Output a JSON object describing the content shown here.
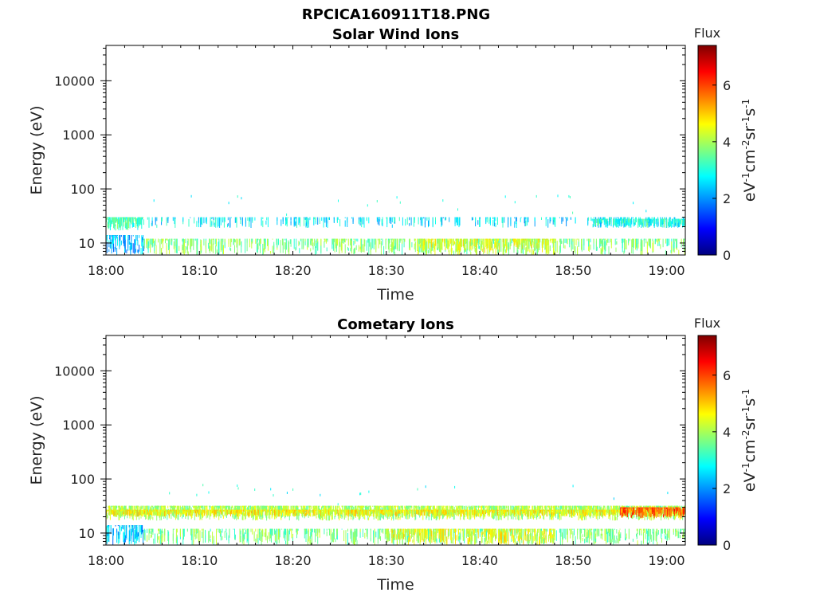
{
  "figure_title": "RPCICA160911T18.PNG",
  "colormap": [
    "#00007f",
    "#0000ff",
    "#007fff",
    "#00ffff",
    "#7fff7f",
    "#ffff00",
    "#ff7f00",
    "#ff0000",
    "#7f0000"
  ],
  "chart_data": [
    {
      "type": "heatmap",
      "title": "Solar Wind Ions",
      "xlabel": "Time",
      "ylabel": "Energy (eV)",
      "x_ticks": [
        "18:00",
        "18:10",
        "18:20",
        "18:30",
        "18:40",
        "18:50",
        "19:00"
      ],
      "x_range_minutes": [
        0,
        62
      ],
      "y_scale": "log",
      "y_ticks": [
        "10",
        "100",
        "1000",
        "10000"
      ],
      "y_range": [
        6,
        45000
      ],
      "colorbar": {
        "title": "Flux",
        "label": "eV-1cm-2sr-1s-1",
        "ticks": [
          "0",
          "2",
          "4",
          "6"
        ],
        "range": [
          0,
          7.4
        ]
      },
      "bands": [
        {
          "t_start_min": 0,
          "t_end_min": 4,
          "e_low": 17,
          "e_high": 30,
          "flux": 3.3,
          "density": 1.0
        },
        {
          "t_start_min": 0,
          "t_end_min": 4,
          "e_low": 6,
          "e_high": 14,
          "flux": 2.2,
          "density": 0.7
        },
        {
          "t_start_min": 4,
          "t_end_min": 62,
          "e_low": 19,
          "e_high": 30,
          "flux": 2.6,
          "density": 0.3
        },
        {
          "t_start_min": 52,
          "t_end_min": 62,
          "e_low": 19,
          "e_high": 28,
          "flux": 3.0,
          "density": 0.8
        },
        {
          "t_start_min": 4,
          "t_end_min": 62,
          "e_low": 6,
          "e_high": 12,
          "flux": 3.7,
          "density": 0.55
        },
        {
          "t_start_min": 33,
          "t_end_min": 48,
          "e_low": 6,
          "e_high": 12,
          "flux": 4.4,
          "density": 0.75
        }
      ]
    },
    {
      "type": "heatmap",
      "title": "Cometary Ions",
      "xlabel": "Time",
      "ylabel": "Energy (eV)",
      "x_ticks": [
        "18:00",
        "18:10",
        "18:20",
        "18:30",
        "18:40",
        "18:50",
        "19:00"
      ],
      "x_range_minutes": [
        0,
        62
      ],
      "y_scale": "log",
      "y_ticks": [
        "10",
        "100",
        "1000",
        "10000"
      ],
      "y_range": [
        6,
        45000
      ],
      "colorbar": {
        "title": "Flux",
        "label": "eV-1cm-2sr-1s-1",
        "ticks": [
          "0",
          "2",
          "4",
          "6"
        ],
        "range": [
          0,
          7.4
        ]
      },
      "bands": [
        {
          "t_start_min": 0,
          "t_end_min": 62,
          "e_low": 17,
          "e_high": 32,
          "flux": 4.0,
          "density": 0.95
        },
        {
          "t_start_min": 0,
          "t_end_min": 62,
          "e_low": 20,
          "e_high": 27,
          "flux": 4.6,
          "density": 0.95
        },
        {
          "t_start_min": 55,
          "t_end_min": 62,
          "e_low": 19,
          "e_high": 30,
          "flux": 5.8,
          "density": 1.0
        },
        {
          "t_start_min": 0,
          "t_end_min": 4,
          "e_low": 6,
          "e_high": 14,
          "flux": 2.3,
          "density": 0.7
        },
        {
          "t_start_min": 4,
          "t_end_min": 62,
          "e_low": 6,
          "e_high": 12,
          "flux": 3.7,
          "density": 0.5
        },
        {
          "t_start_min": 30,
          "t_end_min": 48,
          "e_low": 6,
          "e_high": 12,
          "flux": 4.4,
          "density": 0.7
        }
      ]
    }
  ]
}
